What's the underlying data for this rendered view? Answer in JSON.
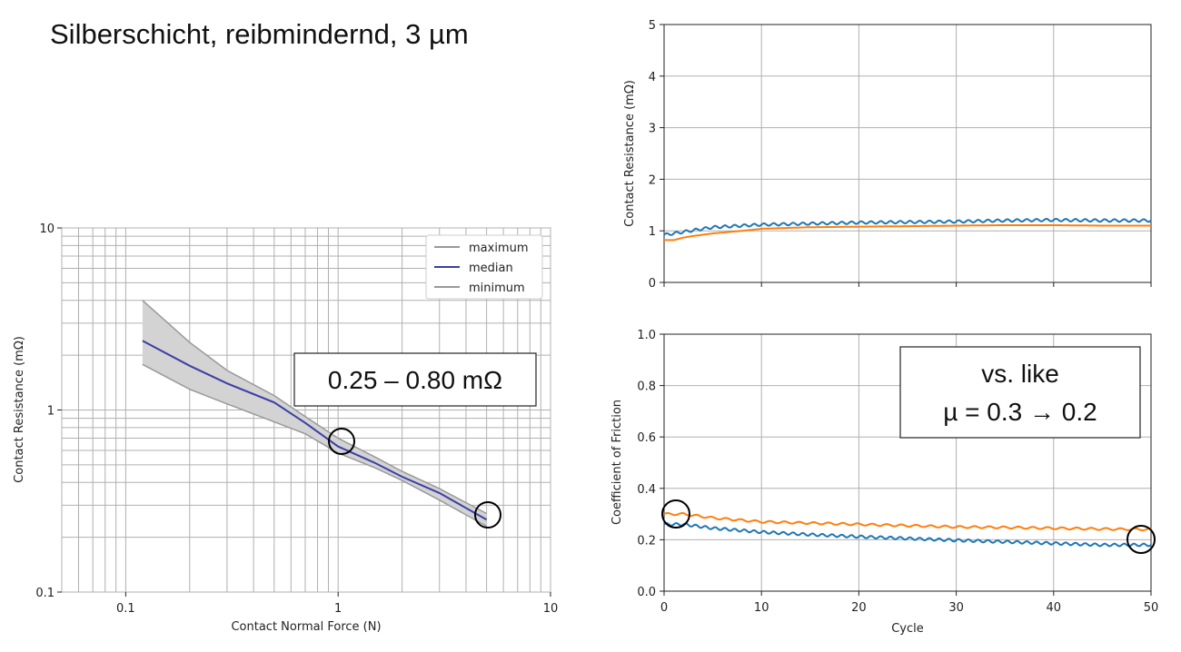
{
  "slide": {
    "title": "Silberschicht, reibmindernd, 3 µm"
  },
  "colors": {
    "median": "#3b3fa5",
    "band": "#d3d3d3",
    "bound": "#999999",
    "blue": "#1f77b4",
    "orange": "#ff7f0e",
    "grid": "#b0b0b0"
  },
  "chart_data": [
    {
      "type": "line",
      "xlabel": "Contact Normal Force (N)",
      "ylabel": "Contact Resistance (mΩ)",
      "xscale": "log",
      "yscale": "log",
      "xlim": [
        0.05,
        10
      ],
      "ylim": [
        0.1,
        10
      ],
      "xtick_labels": [
        "0.1",
        "1",
        "10"
      ],
      "ytick_labels": [
        "0.1",
        "1",
        "10"
      ],
      "grid": true,
      "legend_position": "top-right",
      "x": [
        0.12,
        0.2,
        0.3,
        0.5,
        0.7,
        1.0,
        1.5,
        2.0,
        3.0,
        5.0
      ],
      "series": [
        {
          "name": "maximum",
          "values": [
            4.0,
            2.35,
            1.65,
            1.2,
            0.92,
            0.7,
            0.55,
            0.46,
            0.37,
            0.27
          ]
        },
        {
          "name": "median",
          "values": [
            2.4,
            1.75,
            1.4,
            1.1,
            0.85,
            0.63,
            0.51,
            0.43,
            0.35,
            0.25
          ]
        },
        {
          "name": "minimum",
          "values": [
            1.78,
            1.3,
            1.08,
            0.86,
            0.74,
            0.58,
            0.48,
            0.41,
            0.32,
            0.23
          ]
        }
      ],
      "annotation": "0.25 – 0.80 mΩ"
    },
    {
      "type": "line",
      "xlabel": "",
      "ylabel": "Contact Resistance (mΩ)",
      "xlim": [
        0,
        50
      ],
      "ylim": [
        0,
        5
      ],
      "xticks": [
        0,
        10,
        20,
        30,
        40,
        50
      ],
      "yticks": [
        0,
        1,
        2,
        3,
        4,
        5
      ],
      "grid": true,
      "series": [
        {
          "color": "blue",
          "x": [
            0,
            2,
            5,
            10,
            15,
            20,
            25,
            30,
            35,
            40,
            45,
            50
          ],
          "values": [
            0.92,
            0.98,
            1.07,
            1.12,
            1.14,
            1.16,
            1.17,
            1.18,
            1.2,
            1.21,
            1.2,
            1.2
          ]
        },
        {
          "color": "orange",
          "x": [
            0,
            1,
            2,
            3,
            5,
            8,
            10,
            15,
            20,
            25,
            30,
            35,
            40,
            45,
            50
          ],
          "values": [
            0.82,
            0.82,
            0.87,
            0.9,
            0.95,
            1.0,
            1.04,
            1.07,
            1.08,
            1.09,
            1.1,
            1.11,
            1.11,
            1.1,
            1.1
          ]
        }
      ]
    },
    {
      "type": "line",
      "xlabel": "Cycle",
      "ylabel": "Coefficient of Friction",
      "xlim": [
        0,
        50
      ],
      "ylim": [
        0,
        1.0
      ],
      "xticks": [
        0,
        10,
        20,
        30,
        40,
        50
      ],
      "ytick_labels": [
        "0.0",
        "0.2",
        "0.4",
        "0.6",
        "0.8",
        "1.0"
      ],
      "grid": true,
      "series": [
        {
          "color": "orange",
          "x": [
            0,
            2,
            5,
            10,
            15,
            20,
            25,
            30,
            35,
            40,
            45,
            50
          ],
          "values": [
            0.3,
            0.3,
            0.285,
            0.27,
            0.265,
            0.26,
            0.255,
            0.25,
            0.248,
            0.245,
            0.242,
            0.24
          ]
        },
        {
          "color": "blue",
          "x": [
            0,
            2,
            5,
            10,
            15,
            20,
            25,
            30,
            35,
            40,
            45,
            50
          ],
          "values": [
            0.26,
            0.26,
            0.245,
            0.23,
            0.22,
            0.212,
            0.205,
            0.198,
            0.192,
            0.186,
            0.18,
            0.18
          ]
        }
      ],
      "annotation": [
        "vs. like",
        "µ = 0.3 → 0.2"
      ]
    }
  ]
}
